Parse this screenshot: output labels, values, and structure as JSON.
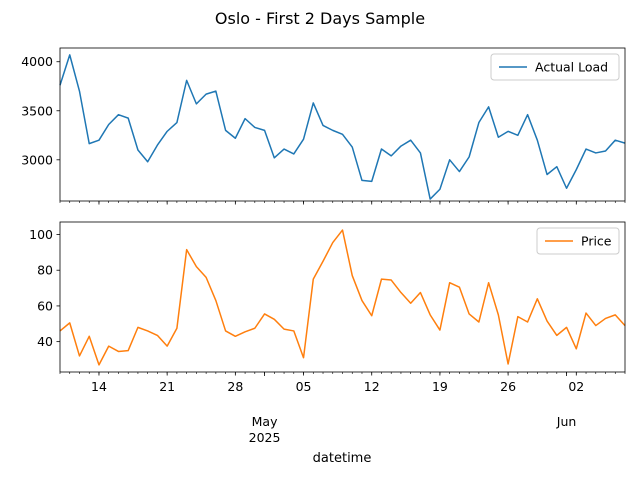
{
  "chart_data": [
    {
      "type": "line",
      "title": "Oslo - First 2 Days Sample",
      "series": [
        {
          "name": "Actual Load",
          "color": "#1f77b4",
          "values": [
            3760,
            4070,
            3700,
            3165,
            3200,
            3360,
            3460,
            3425,
            3100,
            2980,
            3150,
            3290,
            3380,
            3810,
            3570,
            3670,
            3700,
            3300,
            3220,
            3420,
            3330,
            3300,
            3020,
            3110,
            3060,
            3210,
            3580,
            3350,
            3300,
            3260,
            3130,
            2790,
            2780,
            3110,
            3040,
            3140,
            3200,
            3070,
            2600,
            2700,
            3000,
            2880,
            3030,
            3380,
            3540,
            3230,
            3290,
            3250,
            3460,
            3200,
            2850,
            2930,
            2710,
            2900,
            3110,
            3070,
            3090,
            3200,
            3170
          ]
        }
      ],
      "ylim": [
        2580,
        4140
      ],
      "yticks": [
        3000,
        3500,
        4000
      ],
      "legend": "upper right",
      "grid": false
    },
    {
      "type": "line",
      "series": [
        {
          "name": "Price",
          "color": "#ff7f0e",
          "values": [
            46,
            50.5,
            32,
            43,
            27,
            37.5,
            34.5,
            35,
            48,
            46,
            43.5,
            37.5,
            47.5,
            91.5,
            82,
            76,
            63,
            46,
            43,
            45.5,
            47.5,
            55.5,
            52.5,
            47,
            46,
            31,
            75,
            85,
            95.5,
            102.5,
            77,
            63,
            54.5,
            75,
            74.5,
            67.5,
            61.5,
            67.5,
            55,
            46.5,
            73,
            70.5,
            55.5,
            51,
            73,
            55,
            27.5,
            54,
            51,
            64,
            51.5,
            43.5,
            48,
            36,
            56,
            49,
            53,
            55,
            49
          ]
        }
      ],
      "ylim": [
        23,
        107
      ],
      "yticks": [
        40,
        60,
        80,
        100
      ],
      "legend": "upper right",
      "grid": false
    }
  ],
  "x_axis": {
    "xlabel": "datetime",
    "start_date": "2025-04-10",
    "end_date": "2025-06-07",
    "major_ticks": [
      {
        "date": "2025-04-14",
        "label": "14"
      },
      {
        "date": "2025-04-21",
        "label": "21"
      },
      {
        "date": "2025-04-28",
        "label": "28"
      },
      {
        "date": "2025-05-05",
        "label": "05"
      },
      {
        "date": "2025-05-12",
        "label": "12"
      },
      {
        "date": "2025-05-19",
        "label": "19"
      },
      {
        "date": "2025-05-26",
        "label": "26"
      },
      {
        "date": "2025-06-02",
        "label": "02"
      }
    ],
    "month_labels": [
      {
        "date": "2025-05-01",
        "label": "May",
        "year": "2025"
      },
      {
        "date": "2025-06-01",
        "label": "Jun",
        "year": ""
      }
    ]
  }
}
